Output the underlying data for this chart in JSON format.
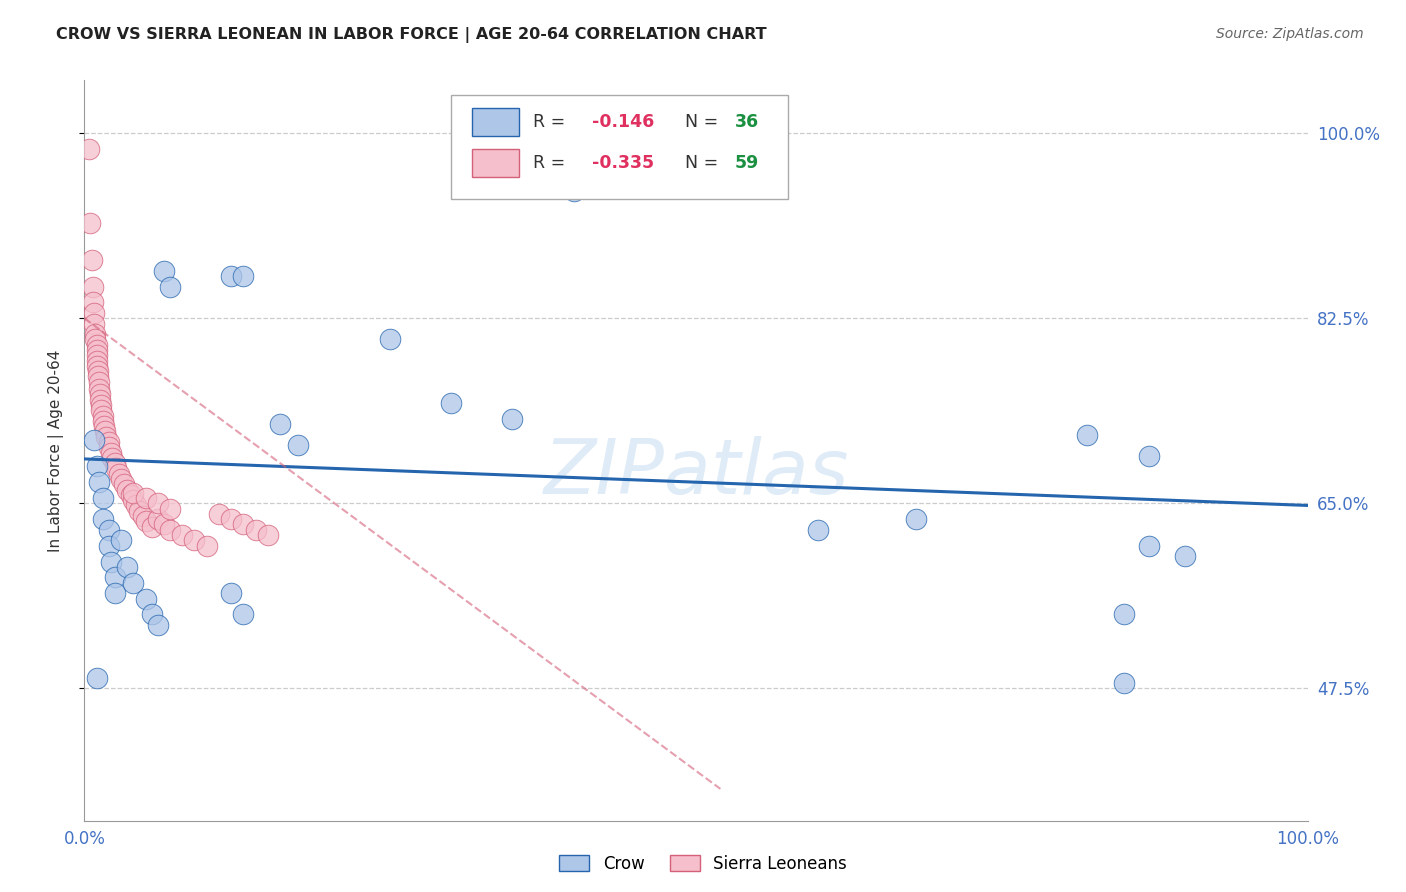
{
  "title": "CROW VS SIERRA LEONEAN IN LABOR FORCE | AGE 20-64 CORRELATION CHART",
  "source": "Source: ZipAtlas.com",
  "ylabel": "In Labor Force | Age 20-64",
  "xlim": [
    0.0,
    1.0
  ],
  "ylim": [
    0.35,
    1.05
  ],
  "yticks": [
    0.475,
    0.65,
    0.825,
    1.0
  ],
  "ytick_labels": [
    "47.5%",
    "65.0%",
    "82.5%",
    "100.0%"
  ],
  "crow_scatter": [
    [
      0.008,
      0.71
    ],
    [
      0.01,
      0.685
    ],
    [
      0.012,
      0.67
    ],
    [
      0.015,
      0.655
    ],
    [
      0.015,
      0.635
    ],
    [
      0.02,
      0.625
    ],
    [
      0.02,
      0.61
    ],
    [
      0.022,
      0.595
    ],
    [
      0.025,
      0.58
    ],
    [
      0.025,
      0.565
    ],
    [
      0.03,
      0.615
    ],
    [
      0.035,
      0.59
    ],
    [
      0.04,
      0.575
    ],
    [
      0.05,
      0.56
    ],
    [
      0.055,
      0.545
    ],
    [
      0.06,
      0.535
    ],
    [
      0.065,
      0.87
    ],
    [
      0.07,
      0.855
    ],
    [
      0.12,
      0.865
    ],
    [
      0.13,
      0.865
    ],
    [
      0.16,
      0.725
    ],
    [
      0.175,
      0.705
    ],
    [
      0.25,
      0.805
    ],
    [
      0.3,
      0.745
    ],
    [
      0.35,
      0.73
    ],
    [
      0.4,
      0.945
    ],
    [
      0.01,
      0.485
    ],
    [
      0.12,
      0.565
    ],
    [
      0.13,
      0.545
    ],
    [
      0.6,
      0.625
    ],
    [
      0.68,
      0.635
    ],
    [
      0.82,
      0.715
    ],
    [
      0.87,
      0.695
    ],
    [
      0.87,
      0.61
    ],
    [
      0.9,
      0.6
    ],
    [
      0.85,
      0.545
    ],
    [
      0.85,
      0.48
    ]
  ],
  "sierra_scatter": [
    [
      0.004,
      0.985
    ],
    [
      0.005,
      0.915
    ],
    [
      0.006,
      0.88
    ],
    [
      0.007,
      0.855
    ],
    [
      0.007,
      0.84
    ],
    [
      0.008,
      0.83
    ],
    [
      0.008,
      0.82
    ],
    [
      0.009,
      0.81
    ],
    [
      0.009,
      0.805
    ],
    [
      0.01,
      0.8
    ],
    [
      0.01,
      0.795
    ],
    [
      0.01,
      0.79
    ],
    [
      0.01,
      0.785
    ],
    [
      0.01,
      0.78
    ],
    [
      0.011,
      0.775
    ],
    [
      0.011,
      0.77
    ],
    [
      0.012,
      0.765
    ],
    [
      0.012,
      0.758
    ],
    [
      0.013,
      0.753
    ],
    [
      0.013,
      0.748
    ],
    [
      0.014,
      0.743
    ],
    [
      0.014,
      0.738
    ],
    [
      0.015,
      0.733
    ],
    [
      0.015,
      0.728
    ],
    [
      0.016,
      0.723
    ],
    [
      0.017,
      0.718
    ],
    [
      0.018,
      0.713
    ],
    [
      0.02,
      0.708
    ],
    [
      0.02,
      0.703
    ],
    [
      0.022,
      0.698
    ],
    [
      0.023,
      0.693
    ],
    [
      0.025,
      0.688
    ],
    [
      0.026,
      0.683
    ],
    [
      0.028,
      0.678
    ],
    [
      0.03,
      0.673
    ],
    [
      0.032,
      0.668
    ],
    [
      0.035,
      0.663
    ],
    [
      0.038,
      0.658
    ],
    [
      0.04,
      0.653
    ],
    [
      0.042,
      0.648
    ],
    [
      0.045,
      0.643
    ],
    [
      0.048,
      0.638
    ],
    [
      0.05,
      0.633
    ],
    [
      0.055,
      0.628
    ],
    [
      0.06,
      0.635
    ],
    [
      0.065,
      0.63
    ],
    [
      0.07,
      0.625
    ],
    [
      0.08,
      0.62
    ],
    [
      0.09,
      0.615
    ],
    [
      0.1,
      0.61
    ],
    [
      0.11,
      0.64
    ],
    [
      0.12,
      0.635
    ],
    [
      0.13,
      0.63
    ],
    [
      0.14,
      0.625
    ],
    [
      0.15,
      0.62
    ],
    [
      0.04,
      0.66
    ],
    [
      0.05,
      0.655
    ],
    [
      0.06,
      0.65
    ],
    [
      0.07,
      0.645
    ]
  ],
  "crow_line_color": "#2565ae",
  "sierra_line_color": "#d4607a",
  "crow_scatter_color": "#aec6e8",
  "sierra_scatter_color": "#f5bfcc",
  "background_color": "#ffffff",
  "watermark": "ZIPatlas",
  "grid_color": "#cccccc",
  "axis_color": "#4472c4"
}
